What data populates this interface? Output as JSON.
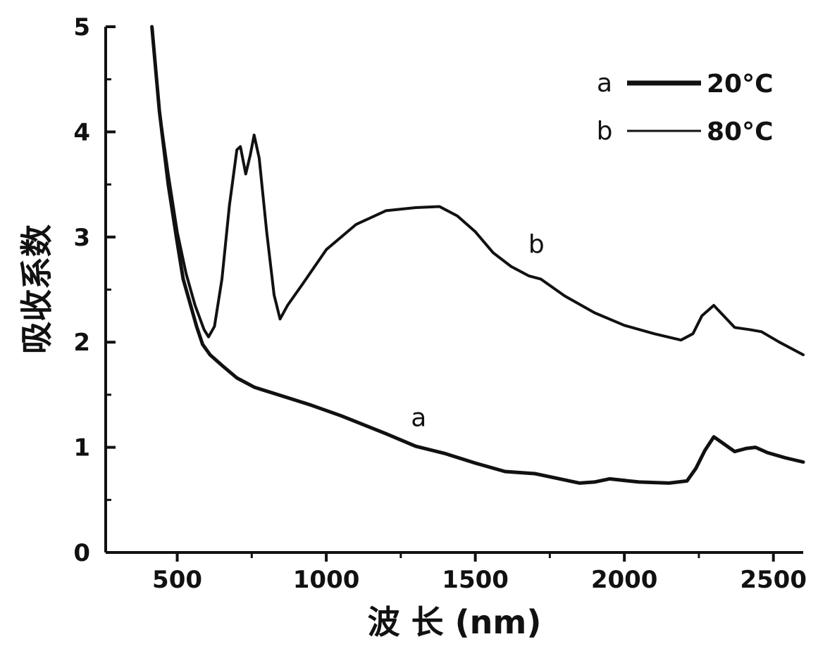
{
  "chart_data": {
    "type": "line",
    "xlabel": "波 长 (nm)",
    "ylabel": "吸收系数",
    "xlim": [
      260,
      2600
    ],
    "ylim": [
      0,
      5
    ],
    "x_ticks": [
      500,
      1000,
      1500,
      2000,
      2500
    ],
    "y_ticks": [
      0,
      1,
      2,
      3,
      4,
      5
    ],
    "legend": {
      "placement": "top-right"
    },
    "series": [
      {
        "name": "20°C",
        "key": "a",
        "line_style": "thick",
        "points": [
          [
            415,
            5.0
          ],
          [
            440,
            4.2
          ],
          [
            470,
            3.5
          ],
          [
            500,
            2.95
          ],
          [
            520,
            2.6
          ],
          [
            545,
            2.35
          ],
          [
            565,
            2.15
          ],
          [
            585,
            1.98
          ],
          [
            610,
            1.88
          ],
          [
            650,
            1.78
          ],
          [
            700,
            1.66
          ],
          [
            760,
            1.57
          ],
          [
            850,
            1.49
          ],
          [
            950,
            1.4
          ],
          [
            1050,
            1.3
          ],
          [
            1200,
            1.13
          ],
          [
            1300,
            1.01
          ],
          [
            1400,
            0.94
          ],
          [
            1500,
            0.85
          ],
          [
            1600,
            0.77
          ],
          [
            1700,
            0.75
          ],
          [
            1800,
            0.69
          ],
          [
            1850,
            0.66
          ],
          [
            1900,
            0.67
          ],
          [
            1950,
            0.7
          ],
          [
            2050,
            0.67
          ],
          [
            2150,
            0.66
          ],
          [
            2210,
            0.68
          ],
          [
            2240,
            0.8
          ],
          [
            2270,
            0.97
          ],
          [
            2300,
            1.1
          ],
          [
            2330,
            1.04
          ],
          [
            2370,
            0.96
          ],
          [
            2410,
            0.99
          ],
          [
            2440,
            1.0
          ],
          [
            2480,
            0.95
          ],
          [
            2540,
            0.9
          ],
          [
            2600,
            0.86
          ]
        ]
      },
      {
        "name": "80°C",
        "key": "b",
        "line_style": "thin",
        "points": [
          [
            415,
            5.0
          ],
          [
            440,
            4.2
          ],
          [
            470,
            3.6
          ],
          [
            500,
            3.05
          ],
          [
            530,
            2.65
          ],
          [
            560,
            2.35
          ],
          [
            590,
            2.12
          ],
          [
            605,
            2.05
          ],
          [
            625,
            2.15
          ],
          [
            650,
            2.6
          ],
          [
            675,
            3.3
          ],
          [
            700,
            3.83
          ],
          [
            712,
            3.86
          ],
          [
            730,
            3.6
          ],
          [
            745,
            3.78
          ],
          [
            758,
            3.97
          ],
          [
            775,
            3.75
          ],
          [
            800,
            3.05
          ],
          [
            825,
            2.45
          ],
          [
            845,
            2.22
          ],
          [
            870,
            2.35
          ],
          [
            920,
            2.55
          ],
          [
            1000,
            2.88
          ],
          [
            1100,
            3.12
          ],
          [
            1200,
            3.25
          ],
          [
            1300,
            3.28
          ],
          [
            1380,
            3.29
          ],
          [
            1440,
            3.2
          ],
          [
            1500,
            3.05
          ],
          [
            1560,
            2.85
          ],
          [
            1620,
            2.72
          ],
          [
            1680,
            2.63
          ],
          [
            1720,
            2.6
          ],
          [
            1800,
            2.44
          ],
          [
            1900,
            2.28
          ],
          [
            2000,
            2.16
          ],
          [
            2100,
            2.08
          ],
          [
            2190,
            2.02
          ],
          [
            2230,
            2.08
          ],
          [
            2260,
            2.25
          ],
          [
            2300,
            2.35
          ],
          [
            2330,
            2.26
          ],
          [
            2370,
            2.14
          ],
          [
            2420,
            2.12
          ],
          [
            2460,
            2.1
          ],
          [
            2520,
            2.0
          ],
          [
            2600,
            1.88
          ]
        ]
      }
    ],
    "annotations": [
      {
        "text": "a",
        "x": 1310,
        "y": 1.2
      },
      {
        "text": "b",
        "x": 1705,
        "y": 2.85
      }
    ]
  }
}
